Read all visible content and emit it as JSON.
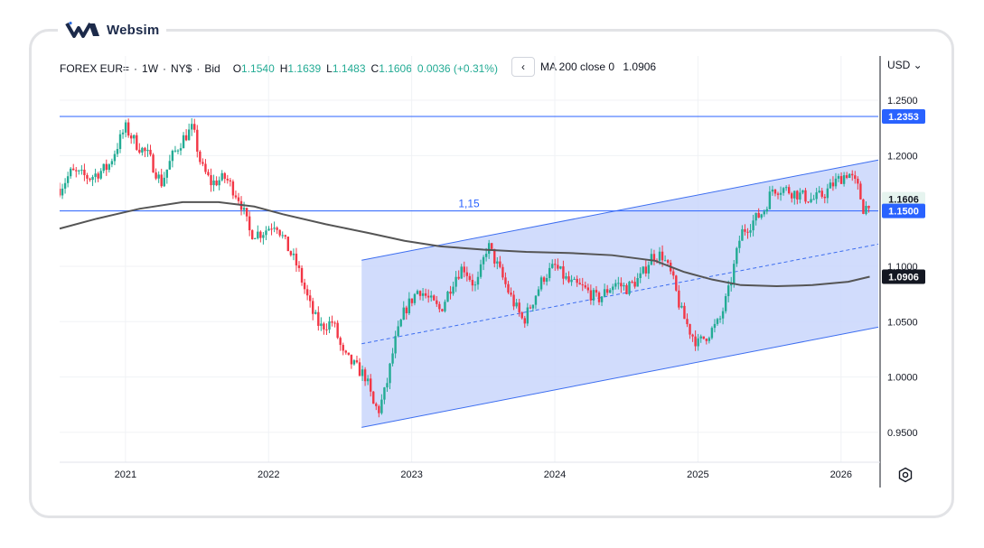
{
  "brand": {
    "name": "Websim"
  },
  "header": {
    "symbol": "FOREX EUR=",
    "sep1": "·",
    "interval": "1W",
    "sep2": "·",
    "exchange": "NY$",
    "sep3": "·",
    "price_type": "Bid",
    "open_label": "O",
    "open_value": "1.1540",
    "high_label": "H",
    "high_value": "1.1639",
    "low_label": "L",
    "low_value": "1.1483",
    "close_label": "C",
    "close_value": "1.1606",
    "change": "0.0036 (+0.31%)"
  },
  "indicator": {
    "label": "MA 200 close 0",
    "value": "1.0906",
    "back_glyph": "‹"
  },
  "currency": "USD ⌄",
  "colors": {
    "up": "#22ab94",
    "down": "#f23645",
    "hline": "#2962ff",
    "channel_fill": "#c9d6fb",
    "channel_line": "#3d6ef0",
    "ma": "#555555"
  },
  "chart_data": {
    "type": "candlestick",
    "title": "FOREX EUR= · 1W · NY$ · Bid",
    "x_tick_labels": [
      "2021",
      "2022",
      "2023",
      "2024",
      "2025",
      "2026"
    ],
    "x_ticks": [
      2021,
      2022,
      2023,
      2024,
      2025,
      2026
    ],
    "xlim": [
      2020.54,
      2026.26
    ],
    "ylim": [
      0.923,
      1.2655
    ],
    "y_tick_labels": [
      "1.2500",
      "1.2000",
      "1.1500",
      "1.1000",
      "1.0500",
      "1.0000",
      "0.9500"
    ],
    "y_ticks": [
      1.25,
      1.2,
      1.15,
      1.1,
      1.05,
      1.0,
      0.95
    ],
    "price_path": [
      [
        2020.54,
        1.17
      ],
      [
        2020.62,
        1.185
      ],
      [
        2020.75,
        1.18
      ],
      [
        2020.88,
        1.19
      ],
      [
        2020.98,
        1.22
      ],
      [
        2021.0,
        1.225
      ],
      [
        2021.08,
        1.21
      ],
      [
        2021.16,
        1.2
      ],
      [
        2021.25,
        1.175
      ],
      [
        2021.33,
        1.2
      ],
      [
        2021.4,
        1.215
      ],
      [
        2021.47,
        1.225
      ],
      [
        2021.53,
        1.19
      ],
      [
        2021.6,
        1.175
      ],
      [
        2021.7,
        1.18
      ],
      [
        2021.8,
        1.16
      ],
      [
        2021.87,
        1.13
      ],
      [
        2021.95,
        1.13
      ],
      [
        2022.05,
        1.14
      ],
      [
        2022.12,
        1.12
      ],
      [
        2022.2,
        1.1
      ],
      [
        2022.3,
        1.06
      ],
      [
        2022.36,
        1.045
      ],
      [
        2022.45,
        1.05
      ],
      [
        2022.52,
        1.02
      ],
      [
        2022.6,
        1.01
      ],
      [
        2022.68,
        1.0
      ],
      [
        2022.73,
        0.975
      ],
      [
        2022.77,
        0.97
      ],
      [
        2022.82,
        0.99
      ],
      [
        2022.88,
        1.03
      ],
      [
        2022.95,
        1.06
      ],
      [
        2023.05,
        1.08
      ],
      [
        2023.12,
        1.07
      ],
      [
        2023.2,
        1.06
      ],
      [
        2023.3,
        1.09
      ],
      [
        2023.36,
        1.1
      ],
      [
        2023.45,
        1.08
      ],
      [
        2023.53,
        1.12
      ],
      [
        2023.6,
        1.1
      ],
      [
        2023.7,
        1.07
      ],
      [
        2023.78,
        1.05
      ],
      [
        2023.85,
        1.07
      ],
      [
        2023.92,
        1.09
      ],
      [
        2024.0,
        1.1
      ],
      [
        2024.1,
        1.085
      ],
      [
        2024.2,
        1.08
      ],
      [
        2024.3,
        1.07
      ],
      [
        2024.42,
        1.085
      ],
      [
        2024.5,
        1.08
      ],
      [
        2024.6,
        1.09
      ],
      [
        2024.68,
        1.11
      ],
      [
        2024.75,
        1.11
      ],
      [
        2024.82,
        1.09
      ],
      [
        2024.88,
        1.06
      ],
      [
        2024.95,
        1.04
      ],
      [
        2025.0,
        1.03
      ],
      [
        2025.08,
        1.04
      ],
      [
        2025.15,
        1.05
      ],
      [
        2025.22,
        1.08
      ],
      [
        2025.3,
        1.13
      ],
      [
        2025.38,
        1.14
      ],
      [
        2025.46,
        1.15
      ],
      [
        2025.52,
        1.17
      ],
      [
        2025.6,
        1.17
      ],
      [
        2025.7,
        1.165
      ],
      [
        2025.8,
        1.16
      ],
      [
        2025.88,
        1.165
      ],
      [
        2025.95,
        1.175
      ],
      [
        2026.05,
        1.185
      ],
      [
        2026.12,
        1.17
      ],
      [
        2026.16,
        1.15
      ],
      [
        2026.2,
        1.16
      ]
    ],
    "ma200": {
      "name": "MA 200 close 0",
      "points": [
        [
          2020.54,
          1.134
        ],
        [
          2020.8,
          1.143
        ],
        [
          2021.1,
          1.152
        ],
        [
          2021.4,
          1.158
        ],
        [
          2021.65,
          1.158
        ],
        [
          2021.9,
          1.154
        ],
        [
          2022.1,
          1.147
        ],
        [
          2022.4,
          1.138
        ],
        [
          2022.7,
          1.13
        ],
        [
          2022.95,
          1.123
        ],
        [
          2023.2,
          1.118
        ],
        [
          2023.5,
          1.115
        ],
        [
          2023.8,
          1.113
        ],
        [
          2024.1,
          1.112
        ],
        [
          2024.4,
          1.11
        ],
        [
          2024.7,
          1.105
        ],
        [
          2024.9,
          1.095
        ],
        [
          2025.1,
          1.088
        ],
        [
          2025.3,
          1.083
        ],
        [
          2025.55,
          1.082
        ],
        [
          2025.8,
          1.083
        ],
        [
          2026.05,
          1.086
        ],
        [
          2026.2,
          1.0906
        ]
      ]
    },
    "horizontal_lines": [
      {
        "value": 1.2353,
        "label": "1.2353"
      },
      {
        "value": 1.15,
        "label": "1.1500",
        "annotation": "1,15"
      }
    ],
    "channel": {
      "start_x": 2022.65,
      "end_x": 2026.26,
      "upper": [
        1.1055,
        1.196
      ],
      "mid": [
        1.03,
        1.12
      ],
      "lower": [
        0.9545,
        1.045
      ]
    },
    "price_labels": [
      {
        "value": 1.2353,
        "text": "1.2353",
        "style": "line"
      },
      {
        "value": 1.1606,
        "text": "1.1606",
        "style": "up"
      },
      {
        "value": 1.15,
        "text": "1.1500",
        "style": "line"
      },
      {
        "value": 1.0906,
        "text": "1.0906",
        "style": "ma"
      }
    ],
    "annotations": [
      {
        "text": "1,15",
        "x": 2023.4,
        "y": 1.15
      }
    ],
    "last_close": 1.1606
  }
}
